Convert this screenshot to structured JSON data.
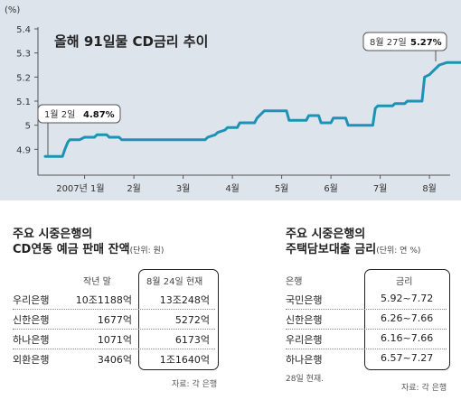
{
  "chart_data": {
    "type": "line",
    "title": "올해 91일물 CD금리 추이",
    "ylabel": "(%)",
    "ylim": [
      4.8,
      5.4
    ],
    "y_ticks": [
      "5.4",
      "5.3",
      "5.2",
      "5.1",
      "5",
      "4.9"
    ],
    "x_ticks": [
      "2007년 1월",
      "2월",
      "3월",
      "4월",
      "5월",
      "6월",
      "7월",
      "8월"
    ],
    "x_range_months": [
      0.2,
      8.9
    ],
    "grid": false,
    "series": [
      {
        "points": [
          [
            0.2,
            4.87
          ],
          [
            0.55,
            4.87
          ],
          [
            0.6,
            4.9
          ],
          [
            0.66,
            4.93
          ],
          [
            0.7,
            4.94
          ],
          [
            0.9,
            4.94
          ],
          [
            1.0,
            4.95
          ],
          [
            1.2,
            4.95
          ],
          [
            1.25,
            4.96
          ],
          [
            1.45,
            4.96
          ],
          [
            1.5,
            4.95
          ],
          [
            1.7,
            4.95
          ],
          [
            1.75,
            4.94
          ],
          [
            3.45,
            4.94
          ],
          [
            3.5,
            4.95
          ],
          [
            3.65,
            4.96
          ],
          [
            3.7,
            4.97
          ],
          [
            3.85,
            4.98
          ],
          [
            3.9,
            4.99
          ],
          [
            4.1,
            4.99
          ],
          [
            4.15,
            5.01
          ],
          [
            4.45,
            5.01
          ],
          [
            4.5,
            5.03
          ],
          [
            4.6,
            5.05
          ],
          [
            4.65,
            5.06
          ],
          [
            5.1,
            5.06
          ],
          [
            5.15,
            5.02
          ],
          [
            5.5,
            5.02
          ],
          [
            5.55,
            5.04
          ],
          [
            5.75,
            5.04
          ],
          [
            5.8,
            5.01
          ],
          [
            6.0,
            5.01
          ],
          [
            6.05,
            5.03
          ],
          [
            6.3,
            5.03
          ],
          [
            6.35,
            5.0
          ],
          [
            6.85,
            5.0
          ],
          [
            6.9,
            5.07
          ],
          [
            6.95,
            5.08
          ],
          [
            7.25,
            5.08
          ],
          [
            7.3,
            5.09
          ],
          [
            7.5,
            5.09
          ],
          [
            7.55,
            5.1
          ],
          [
            7.85,
            5.1
          ],
          [
            7.9,
            5.2
          ],
          [
            8.0,
            5.21
          ],
          [
            8.1,
            5.23
          ],
          [
            8.2,
            5.25
          ],
          [
            8.35,
            5.26
          ],
          [
            8.9,
            5.26
          ]
        ]
      }
    ],
    "annotations": [
      {
        "label": "1월 2일",
        "value": "4.87%"
      },
      {
        "label": "8월 27일",
        "value": "5.27%"
      }
    ]
  },
  "table_left": {
    "title_line1": "주요 시중은행의",
    "title_line2": "CD연동 예금 판매 잔액",
    "unit": "(단위: 원)",
    "col_prev": "작년 말",
    "col_now": "8월 24일 현재",
    "rows": [
      {
        "bank": "우리은행",
        "prev": "10조1188억",
        "now": "13조248억"
      },
      {
        "bank": "신한은행",
        "prev": "1677억",
        "now": "5272억"
      },
      {
        "bank": "하나은행",
        "prev": "1071억",
        "now": "6173억"
      },
      {
        "bank": "외환은행",
        "prev": "3406억",
        "now": "1조1640억"
      }
    ],
    "source": "자료: 각 은행"
  },
  "table_right": {
    "title_line1": "주요 시중은행의",
    "title_line2": "주택담보대출 금리",
    "unit": "(단위: 연 %)",
    "col_bank": "은행",
    "col_rate": "금리",
    "rows": [
      {
        "bank": "국민은행",
        "rate": "5.92~7.72"
      },
      {
        "bank": "신한은행",
        "rate": "6.26~7.66"
      },
      {
        "bank": "우리은행",
        "rate": "6.16~7.66"
      },
      {
        "bank": "하나은행",
        "rate": "6.57~7.27"
      }
    ],
    "footnote": "28일 현재.",
    "source": "자료: 각 은행"
  },
  "colors": {
    "line": "#1c93b5",
    "panel_bg": "#dde4ec",
    "dot": "#1c93b5"
  }
}
